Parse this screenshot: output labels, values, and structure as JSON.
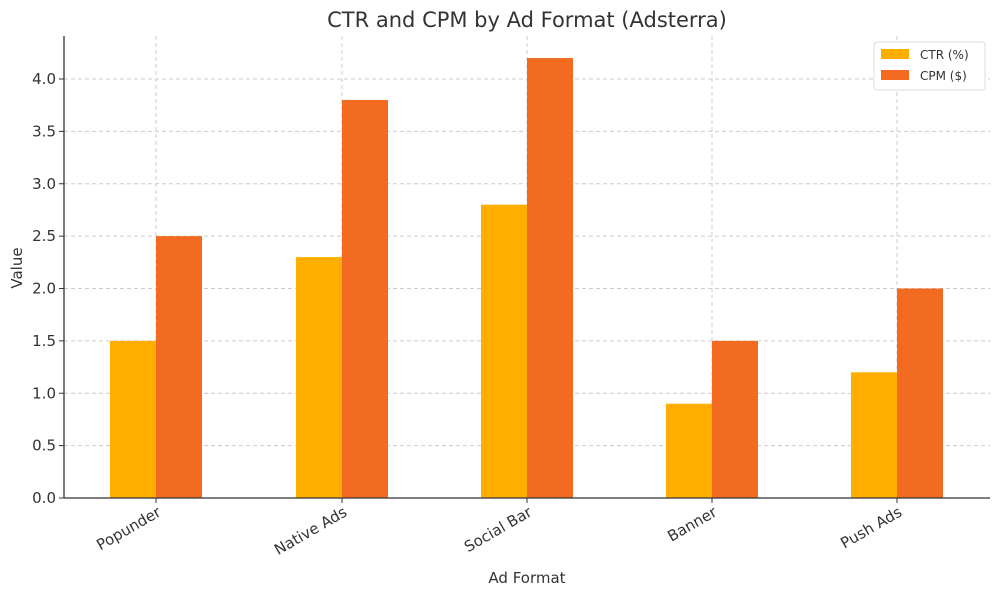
{
  "chart_data": {
    "type": "bar",
    "title": "CTR and CPM by Ad Format (Adsterra)",
    "xlabel": "Ad Format",
    "ylabel": "Value",
    "categories": [
      "Popunder",
      "Native Ads",
      "Social Bar",
      "Banner",
      "Push Ads"
    ],
    "series": [
      {
        "name": "CTR (%)",
        "color": "#FFAE00",
        "values": [
          1.5,
          2.3,
          2.8,
          0.9,
          1.2
        ]
      },
      {
        "name": "CPM ($)",
        "color": "#F26B21",
        "values": [
          2.5,
          3.8,
          4.2,
          1.5,
          2.0
        ]
      }
    ],
    "yticks": [
      "0.0",
      "0.5",
      "1.0",
      "1.5",
      "2.0",
      "2.5",
      "3.0",
      "3.5",
      "4.0"
    ],
    "ylim": [
      0,
      4.41
    ],
    "grid": true,
    "legend_position": "upper right"
  }
}
